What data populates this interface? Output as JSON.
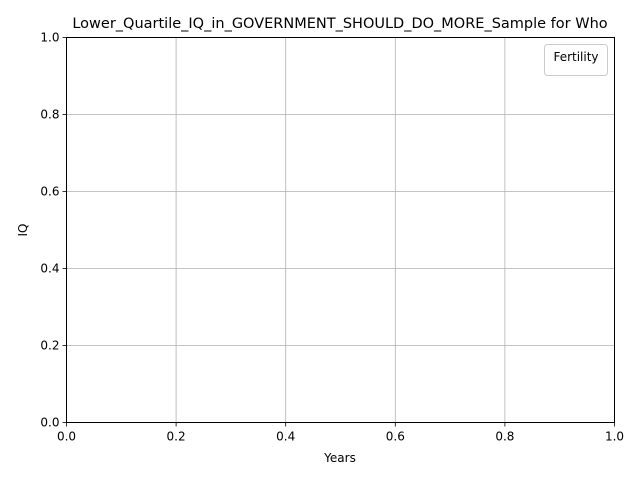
{
  "chart_data": {
    "type": "line",
    "title": "Lower_Quartile_IQ_in_GOVERNMENT_SHOULD_DO_MORE_Sample for Who",
    "xlabel": "Years",
    "ylabel": "IQ",
    "xlim": [
      0,
      1
    ],
    "ylim": [
      0,
      1
    ],
    "xticks": [
      "0.0",
      "0.2",
      "0.4",
      "0.6",
      "0.8",
      "1.0"
    ],
    "yticks": [
      "0.0",
      "0.2",
      "0.4",
      "0.6",
      "0.8",
      "1.0"
    ],
    "grid": true,
    "legend": {
      "title": "Fertility",
      "location": "top-right",
      "entries": []
    },
    "series": []
  },
  "colors": {
    "background": "#ffffff",
    "axis": "#000000",
    "grid": "#b0b0b0",
    "legend_border": "#cccccc"
  }
}
